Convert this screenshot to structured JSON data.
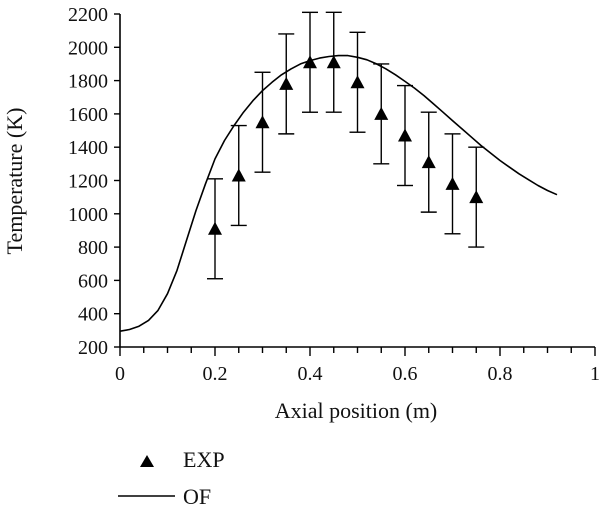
{
  "chart_data": {
    "type": "scatter",
    "xlabel": "Axial position (m)",
    "ylabel": "Temperature (K)",
    "xlim": [
      0,
      1
    ],
    "ylim": [
      200,
      2200
    ],
    "x_ticks": [
      0,
      0.2,
      0.4,
      0.6,
      0.8,
      1
    ],
    "x_tick_labels": [
      "0",
      "0.2",
      "0.4",
      "0.6",
      "0.8",
      "1"
    ],
    "y_ticks": [
      200,
      400,
      600,
      800,
      1000,
      1200,
      1400,
      1600,
      1800,
      2000,
      2200
    ],
    "y_tick_labels": [
      "200",
      "400",
      "600",
      "800",
      "1000",
      "1200",
      "1400",
      "1600",
      "1800",
      "2000",
      "2200"
    ],
    "x_minor_step": 0.05,
    "grid": false,
    "legend_position": "bottom-left",
    "series": [
      {
        "name": "EXP",
        "kind": "scatter-errorbar",
        "marker": "triangle",
        "color": "#000000",
        "x": [
          0.2,
          0.25,
          0.3,
          0.35,
          0.4,
          0.45,
          0.5,
          0.55,
          0.6,
          0.65,
          0.7,
          0.75
        ],
        "y": [
          910,
          1230,
          1550,
          1780,
          1910,
          1910,
          1790,
          1600,
          1470,
          1310,
          1180,
          1100
        ],
        "error": 300
      },
      {
        "name": "OF",
        "kind": "line",
        "color": "#000000",
        "x": [
          0,
          0.02,
          0.04,
          0.06,
          0.08,
          0.1,
          0.12,
          0.14,
          0.16,
          0.18,
          0.2,
          0.22,
          0.24,
          0.26,
          0.28,
          0.3,
          0.32,
          0.34,
          0.36,
          0.38,
          0.4,
          0.42,
          0.44,
          0.46,
          0.48,
          0.5,
          0.52,
          0.54,
          0.56,
          0.58,
          0.6,
          0.62,
          0.64,
          0.66,
          0.68,
          0.7,
          0.72,
          0.74,
          0.76,
          0.78,
          0.8,
          0.82,
          0.84,
          0.86,
          0.88,
          0.9,
          0.92
        ],
        "y": [
          295,
          305,
          325,
          360,
          420,
          520,
          660,
          840,
          1020,
          1180,
          1330,
          1440,
          1530,
          1610,
          1680,
          1740,
          1790,
          1835,
          1870,
          1900,
          1920,
          1935,
          1945,
          1950,
          1950,
          1940,
          1925,
          1900,
          1870,
          1835,
          1795,
          1755,
          1710,
          1660,
          1610,
          1560,
          1510,
          1460,
          1410,
          1365,
          1320,
          1280,
          1240,
          1205,
          1170,
          1140,
          1115
        ]
      }
    ]
  }
}
